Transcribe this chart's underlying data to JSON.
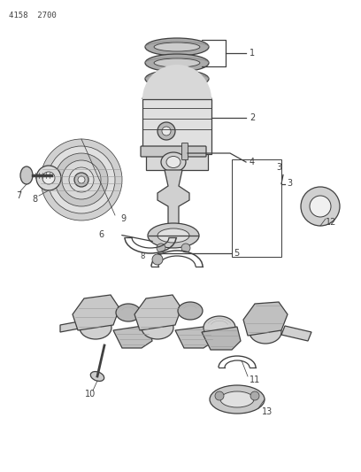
{
  "title": "4158  2700",
  "bg_color": "#ffffff",
  "line_color": "#404040",
  "text_color": "#404040",
  "fig_w": 4.08,
  "fig_h": 5.33,
  "dpi": 100
}
